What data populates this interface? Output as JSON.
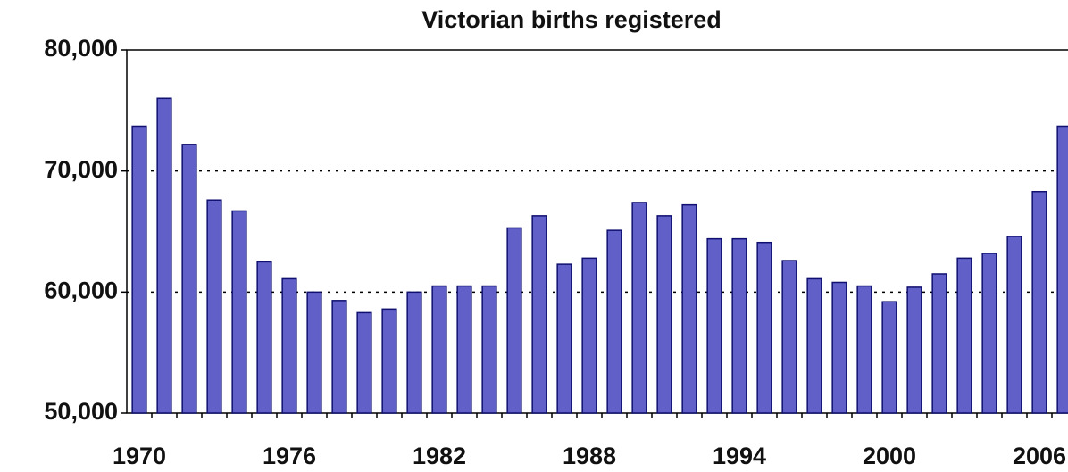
{
  "chart_data": {
    "type": "bar",
    "title": "Victorian births registered",
    "x": [
      1970,
      1971,
      1972,
      1973,
      1974,
      1975,
      1976,
      1977,
      1978,
      1979,
      1980,
      1981,
      1982,
      1983,
      1984,
      1985,
      1986,
      1987,
      1988,
      1989,
      1990,
      1991,
      1992,
      1993,
      1994,
      1995,
      1996,
      1997,
      1998,
      1999,
      2000,
      2001,
      2002,
      2003,
      2004,
      2005,
      2006,
      2007
    ],
    "values": [
      73700,
      76000,
      72200,
      67600,
      66700,
      62500,
      61100,
      60000,
      59300,
      58300,
      58600,
      60000,
      60500,
      60500,
      60500,
      65300,
      66300,
      62300,
      62800,
      65100,
      67400,
      66300,
      67200,
      64400,
      64400,
      64100,
      62600,
      61100,
      60800,
      60500,
      59200,
      60400,
      61500,
      62800,
      63200,
      64600,
      68300,
      73700
    ],
    "color": "#6060c8",
    "xlim": [
      1969.5,
      2007.5
    ],
    "xticks": [
      1970,
      1976,
      1982,
      1988,
      1994,
      2000,
      2006
    ],
    "ylim": [
      50000,
      80000
    ],
    "yticks": [
      {
        "value": 50000,
        "label": "50,000"
      },
      {
        "value": 60000,
        "label": "60,000"
      },
      {
        "value": 70000,
        "label": "70,000"
      },
      {
        "value": 80000,
        "label": "80,000"
      }
    ],
    "grid": true
  }
}
